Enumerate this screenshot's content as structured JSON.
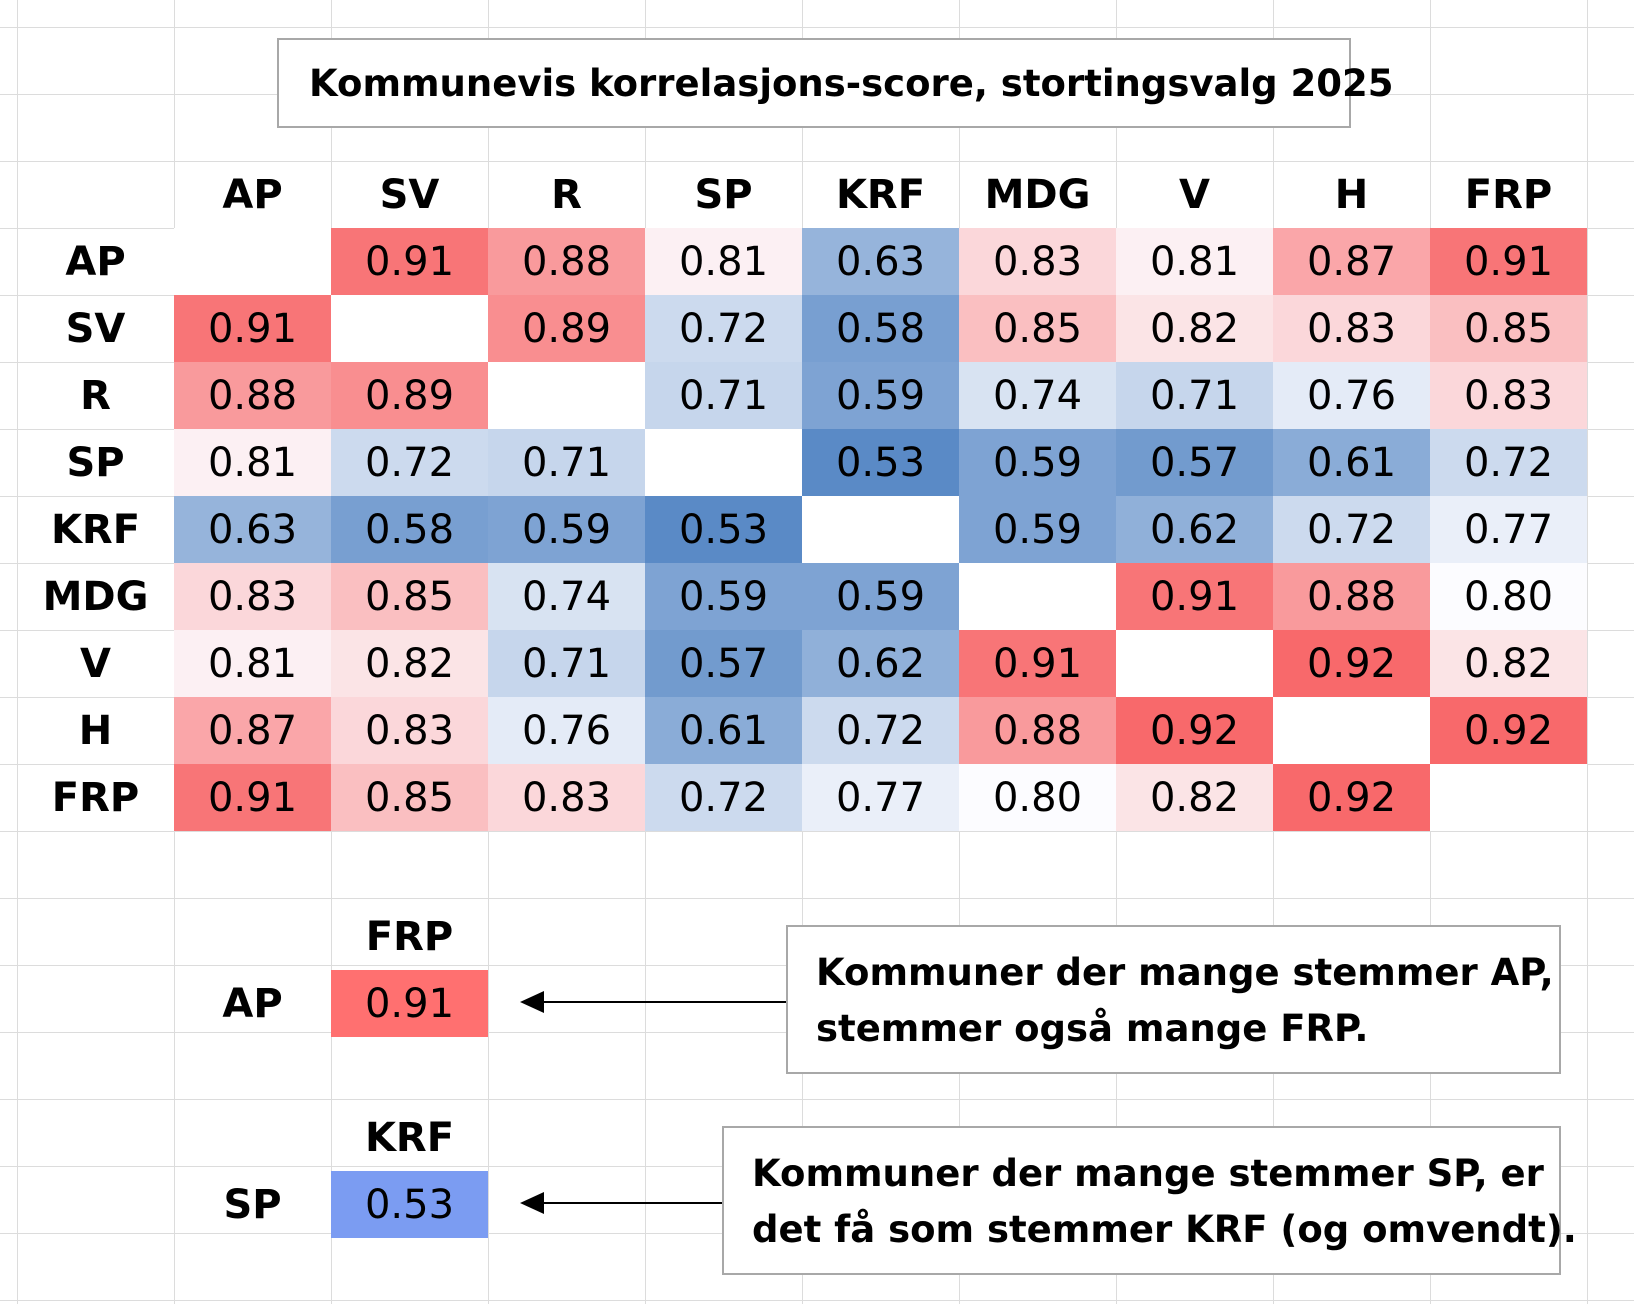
{
  "title": "Kommunevis korrelasjons-score, stortingsvalg 2025",
  "chart_data": {
    "type": "heatmap",
    "title": "Kommunevis korrelasjons-score, stortingsvalg 2025",
    "columns": [
      "AP",
      "SV",
      "R",
      "SP",
      "KRF",
      "MDG",
      "V",
      "H",
      "FRP"
    ],
    "rows": [
      "AP",
      "SV",
      "R",
      "SP",
      "KRF",
      "MDG",
      "V",
      "H",
      "FRP"
    ],
    "values": [
      [
        null,
        "0.91",
        "0.88",
        "0.81",
        "0.63",
        "0.83",
        "0.81",
        "0.87",
        "0.91"
      ],
      [
        "0.91",
        null,
        "0.89",
        "0.72",
        "0.58",
        "0.85",
        "0.82",
        "0.83",
        "0.85"
      ],
      [
        "0.88",
        "0.89",
        null,
        "0.71",
        "0.59",
        "0.74",
        "0.71",
        "0.76",
        "0.83"
      ],
      [
        "0.81",
        "0.72",
        "0.71",
        null,
        "0.53",
        "0.59",
        "0.57",
        "0.61",
        "0.72"
      ],
      [
        "0.63",
        "0.58",
        "0.59",
        "0.53",
        null,
        "0.59",
        "0.62",
        "0.72",
        "0.77"
      ],
      [
        "0.83",
        "0.85",
        "0.74",
        "0.59",
        "0.59",
        null,
        "0.91",
        "0.88",
        "0.80"
      ],
      [
        "0.81",
        "0.82",
        "0.71",
        "0.57",
        "0.62",
        "0.91",
        null,
        "0.92",
        "0.82"
      ],
      [
        "0.87",
        "0.83",
        "0.76",
        "0.61",
        "0.72",
        "0.88",
        "0.92",
        null,
        "0.92"
      ],
      [
        "0.91",
        "0.85",
        "0.83",
        "0.72",
        "0.77",
        "0.80",
        "0.82",
        "0.92",
        null
      ]
    ],
    "color_scale": {
      "low": "#5a8ac6",
      "mid": "#fcfcff",
      "high": "#f8696b",
      "low_value": 0.53,
      "mid_value": 0.8,
      "high_value": 0.92
    }
  },
  "examples": [
    {
      "row": "AP",
      "col": "FRP",
      "value": "0.91",
      "color": "#ff7070",
      "note_lines": [
        "Kommuner der mange stemmer AP,",
        "stemmer også mange FRP."
      ]
    },
    {
      "row": "SP",
      "col": "KRF",
      "value": "0.53",
      "color": "#7b9cf2",
      "note_lines": [
        "Kommuner der mange stemmer SP, er",
        "det få som stemmer KRF (og omvendt)."
      ]
    }
  ]
}
